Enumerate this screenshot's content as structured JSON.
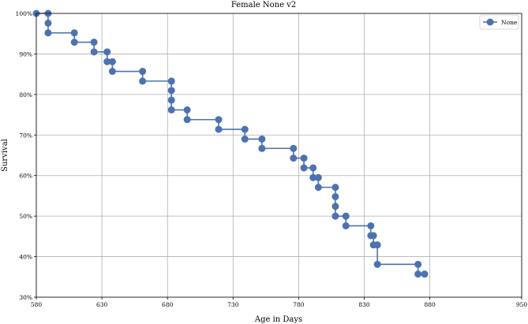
{
  "chart_data": {
    "type": "line",
    "title": "Female None v2",
    "xlabel": "Age in Days",
    "ylabel": "Survival",
    "xlim": [
      580,
      950
    ],
    "ylim": [
      0.3,
      1.0
    ],
    "xticks": [
      580,
      630,
      680,
      730,
      780,
      830,
      880,
      950
    ],
    "xtick_labels": [
      "580",
      "630",
      "680",
      "730",
      "780",
      "830",
      "880",
      "950"
    ],
    "yticks": [
      0.3,
      0.4,
      0.5,
      0.6,
      0.7,
      0.8,
      0.9,
      1.0
    ],
    "ytick_labels": [
      "30%",
      "40%",
      "50%",
      "60%",
      "70%",
      "80%",
      "90%",
      "100%"
    ],
    "grid": true,
    "legend_position": "top-right",
    "colors": {
      "series": "#4c72b0",
      "grid": "#b0b0b0",
      "axes": "#000000"
    },
    "step_style": "post",
    "series": [
      {
        "name": "None",
        "x": [
          580,
          589,
          589,
          589,
          609,
          609,
          624,
          624,
          634,
          634,
          638,
          638,
          661,
          661,
          683,
          683,
          683,
          683,
          695,
          695,
          719,
          719,
          739,
          739,
          752,
          752,
          776,
          776,
          784,
          784,
          791,
          791,
          795,
          795,
          808,
          808,
          808,
          808,
          816,
          816,
          835,
          835,
          837,
          837,
          840,
          840,
          871,
          871,
          876
        ],
        "y": [
          1.0,
          1.0,
          0.976,
          0.952,
          0.952,
          0.929,
          0.929,
          0.905,
          0.905,
          0.881,
          0.881,
          0.857,
          0.857,
          0.833,
          0.833,
          0.81,
          0.786,
          0.762,
          0.762,
          0.738,
          0.738,
          0.714,
          0.714,
          0.69,
          0.69,
          0.667,
          0.667,
          0.643,
          0.643,
          0.619,
          0.619,
          0.595,
          0.595,
          0.571,
          0.571,
          0.548,
          0.524,
          0.5,
          0.5,
          0.476,
          0.476,
          0.452,
          0.452,
          0.429,
          0.429,
          0.381,
          0.381,
          0.357,
          0.357
        ]
      }
    ]
  }
}
